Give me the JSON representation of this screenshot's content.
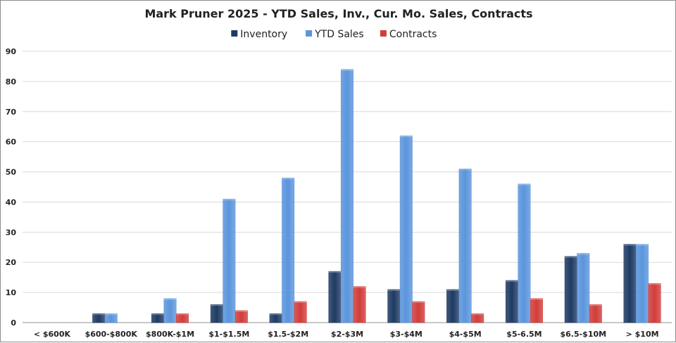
{
  "chart_data": {
    "type": "bar",
    "title": "Mark Pruner 2025 - YTD Sales, Inv., Cur. Mo. Sales, Contracts",
    "xlabel": "",
    "ylabel": "",
    "ylim": [
      0,
      90
    ],
    "yticks": [
      "0",
      "10",
      "20",
      "30",
      "40",
      "50",
      "60",
      "70",
      "80",
      "90"
    ],
    "grid": true,
    "legend_position": "top",
    "categories": [
      "< $600K",
      "$600-$800K",
      "$800K-$1M",
      "$1-$1.5M",
      "$1.5-$2M",
      "$2-$3M",
      "$3-$4M",
      "$4-$5M",
      "$5-6.5M",
      "$6.5-$10M",
      "> $10M"
    ],
    "series": [
      {
        "name": "Inventory",
        "color": "#1f3b63",
        "values": [
          0,
          3,
          3,
          6,
          3,
          17,
          11,
          11,
          14,
          22,
          26
        ]
      },
      {
        "name": "YTD Sales",
        "color": "#5b95dc",
        "values": [
          0,
          3,
          8,
          41,
          48,
          84,
          62,
          51,
          46,
          23,
          26
        ]
      },
      {
        "name": "Contracts",
        "color": "#d13d3a",
        "values": [
          0,
          0,
          3,
          4,
          7,
          12,
          7,
          3,
          8,
          6,
          13
        ]
      }
    ]
  }
}
